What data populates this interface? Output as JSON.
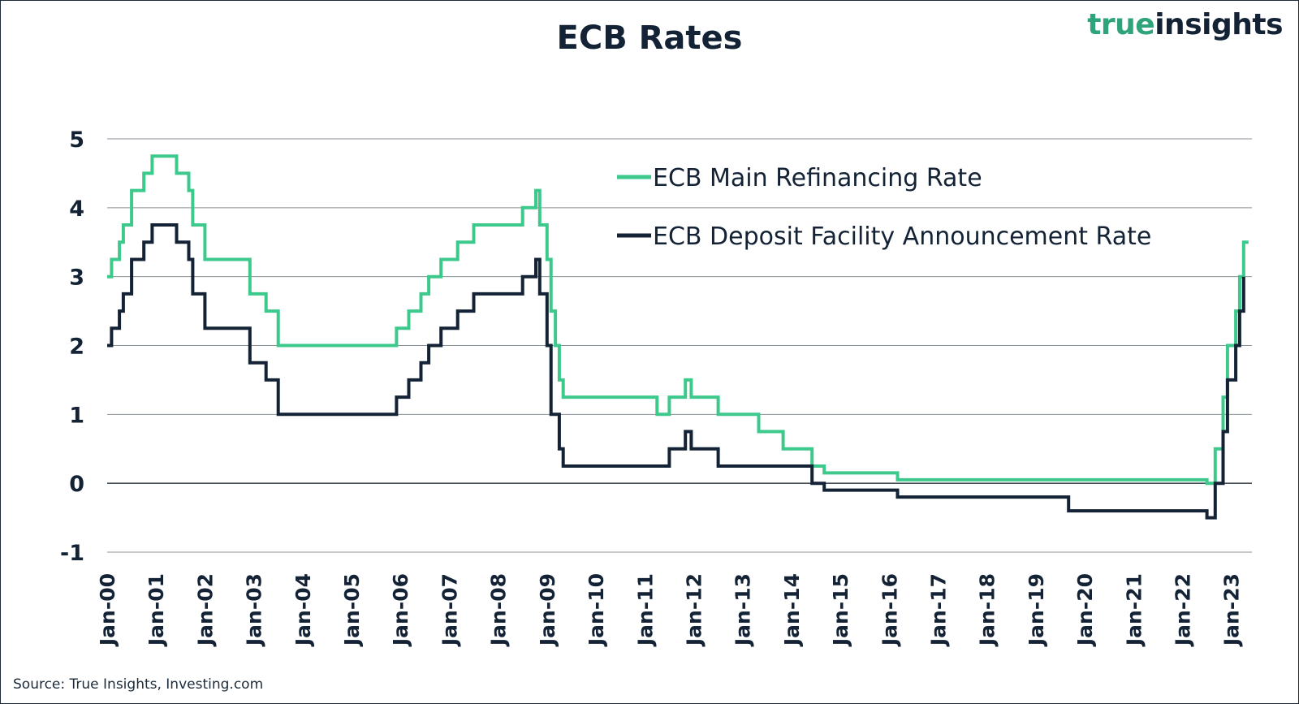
{
  "header": {
    "title": "ECB Rates"
  },
  "logo": {
    "part1": "true",
    "part2": "insights"
  },
  "footer": {
    "source": "Source: True Insights, Investing.com"
  },
  "colors": {
    "refinancing": "#3ec98c",
    "deposit": "#132235",
    "text": "#132235",
    "grid": "#8a9299"
  },
  "chart_data": {
    "type": "line",
    "title": "ECB Rates",
    "xlabel": "",
    "ylabel": "",
    "ylim": [
      -1,
      5
    ],
    "xlim": [
      2000.0,
      2023.42
    ],
    "yticks": [
      5,
      4,
      3,
      2,
      1,
      0,
      -1
    ],
    "x_tick_labels": [
      "Jan-00",
      "Jan-01",
      "Jan-02",
      "Jan-03",
      "Jan-04",
      "Jan-05",
      "Jan-06",
      "Jan-07",
      "Jan-08",
      "Jan-09",
      "Jan-10",
      "Jan-11",
      "Jan-12",
      "Jan-13",
      "Jan-14",
      "Jan-15",
      "Jan-16",
      "Jan-17",
      "Jan-18",
      "Jan-19",
      "Jan-20",
      "Jan-21",
      "Jan-22",
      "Jan-23"
    ],
    "grid": "horizontal",
    "legend_position": "top-center",
    "series": [
      {
        "name": "ECB Main Refinancing Rate",
        "color": "#3ec98c",
        "step": true,
        "x": [
          2000.0,
          2000.09,
          2000.25,
          2000.33,
          2000.5,
          2000.75,
          2000.92,
          2001.42,
          2001.67,
          2001.75,
          2002.0,
          2002.92,
          2003.25,
          2003.5,
          2005.92,
          2006.17,
          2006.42,
          2006.58,
          2006.83,
          2007.17,
          2007.5,
          2008.5,
          2008.77,
          2008.85,
          2009.0,
          2009.08,
          2009.17,
          2009.25,
          2009.33,
          2011.25,
          2011.5,
          2011.83,
          2011.95,
          2012.5,
          2013.33,
          2013.83,
          2014.42,
          2014.67,
          2016.17,
          2022.5,
          2022.67,
          2022.83,
          2022.92,
          2023.09,
          2023.17,
          2023.25,
          2023.35
        ],
        "y": [
          3.0,
          3.25,
          3.5,
          3.75,
          4.25,
          4.5,
          4.75,
          4.5,
          4.25,
          3.75,
          3.25,
          2.75,
          2.5,
          2.0,
          2.25,
          2.5,
          2.75,
          3.0,
          3.25,
          3.5,
          3.75,
          4.0,
          4.25,
          3.75,
          3.25,
          2.5,
          2.0,
          1.5,
          1.25,
          1.0,
          1.25,
          1.5,
          1.25,
          1.0,
          0.75,
          0.5,
          0.25,
          0.15,
          0.05,
          0.0,
          0.5,
          1.25,
          2.0,
          2.5,
          3.0,
          3.5,
          3.5
        ]
      },
      {
        "name": "ECB Deposit Facility Announcement Rate",
        "color": "#132235",
        "step": true,
        "x": [
          2000.0,
          2000.09,
          2000.25,
          2000.33,
          2000.5,
          2000.75,
          2000.92,
          2001.42,
          2001.67,
          2001.75,
          2002.0,
          2002.92,
          2003.25,
          2003.5,
          2005.92,
          2006.17,
          2006.42,
          2006.58,
          2006.83,
          2007.17,
          2007.5,
          2008.5,
          2008.77,
          2008.85,
          2009.0,
          2009.08,
          2009.17,
          2009.25,
          2009.33,
          2011.25,
          2011.5,
          2011.83,
          2011.95,
          2012.5,
          2014.42,
          2014.67,
          2016.17,
          2019.67,
          2022.5,
          2022.67,
          2022.83,
          2022.92,
          2023.09,
          2023.17,
          2023.25
        ],
        "y": [
          2.0,
          2.25,
          2.5,
          2.75,
          3.25,
          3.5,
          3.75,
          3.5,
          3.25,
          2.75,
          2.25,
          1.75,
          1.5,
          1.0,
          1.25,
          1.5,
          1.75,
          2.0,
          2.25,
          2.5,
          2.75,
          3.0,
          3.25,
          2.75,
          2.0,
          1.0,
          1.0,
          0.5,
          0.25,
          0.25,
          0.5,
          0.75,
          0.5,
          0.25,
          0.0,
          -0.1,
          -0.2,
          -0.4,
          -0.5,
          0.0,
          0.75,
          1.5,
          2.0,
          2.5,
          3.0
        ]
      }
    ]
  }
}
